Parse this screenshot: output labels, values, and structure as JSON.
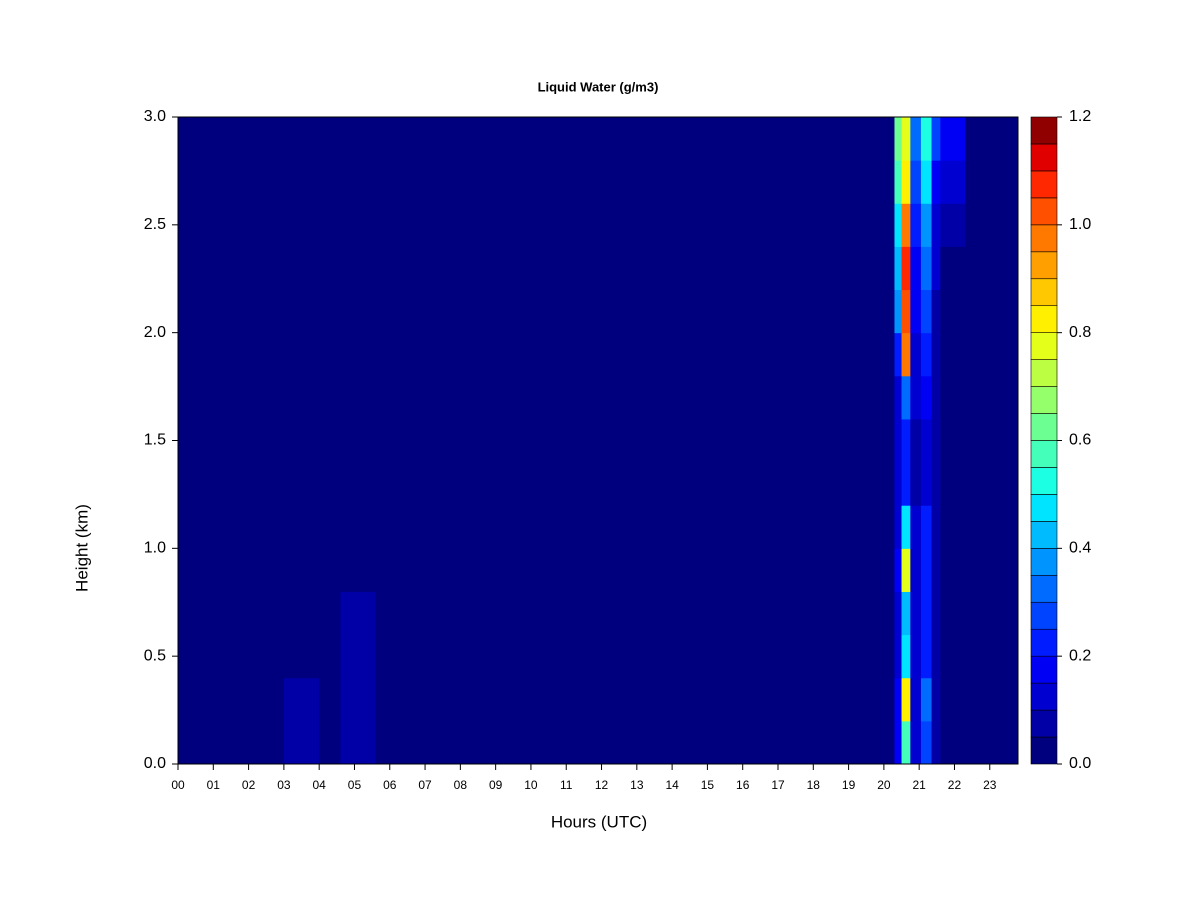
{
  "chart_data": {
    "type": "heatmap",
    "title": "Liquid Water (g/m3)",
    "x_label": "Hours (UTC)",
    "y_label": "Height (km)",
    "xlim": [
      0,
      23.8
    ],
    "ylim": [
      0,
      3
    ],
    "xticks": [
      {
        "value": 0,
        "label": "00"
      },
      {
        "value": 1,
        "label": "01"
      },
      {
        "value": 2,
        "label": "02"
      },
      {
        "value": 3,
        "label": "03"
      },
      {
        "value": 4,
        "label": "04"
      },
      {
        "value": 5,
        "label": "05"
      },
      {
        "value": 6,
        "label": "06"
      },
      {
        "value": 7,
        "label": "07"
      },
      {
        "value": 8,
        "label": "08"
      },
      {
        "value": 9,
        "label": "09"
      },
      {
        "value": 10,
        "label": "10"
      },
      {
        "value": 11,
        "label": "11"
      },
      {
        "value": 12,
        "label": "12"
      },
      {
        "value": 13,
        "label": "13"
      },
      {
        "value": 14,
        "label": "14"
      },
      {
        "value": 15,
        "label": "15"
      },
      {
        "value": 16,
        "label": "16"
      },
      {
        "value": 17,
        "label": "17"
      },
      {
        "value": 18,
        "label": "18"
      },
      {
        "value": 19,
        "label": "19"
      },
      {
        "value": 20,
        "label": "20"
      },
      {
        "value": 21,
        "label": "21"
      },
      {
        "value": 22,
        "label": "22"
      },
      {
        "value": 23,
        "label": "23"
      }
    ],
    "yticks": [
      {
        "value": 0,
        "label": "0.0"
      },
      0.5,
      {
        "value": 1,
        "label": "1.0"
      },
      1.5,
      {
        "value": 2,
        "label": "2.0"
      },
      2.5,
      {
        "value": 3,
        "label": "3.0"
      }
    ],
    "x_edges": [
      0,
      3,
      4,
      4.6,
      5.6,
      20.3,
      20.5,
      20.75,
      21.05,
      21.35,
      21.6,
      22.3,
      23.8
    ],
    "y_edges": [
      0,
      0.2,
      0.4,
      0.6,
      0.8,
      1.0,
      1.2,
      1.4,
      1.6,
      1.8,
      2.0,
      2.2,
      2.4,
      2.6,
      2.8,
      3.0
    ],
    "values": [
      [
        0.01,
        0.05,
        0.02,
        0.07,
        0.01,
        0.15,
        0.55,
        0.12,
        0.25,
        0.08,
        0.02,
        0.01
      ],
      [
        0.01,
        0.06,
        0.02,
        0.08,
        0.01,
        0.15,
        0.8,
        0.12,
        0.3,
        0.08,
        0.02,
        0.01
      ],
      [
        0.01,
        0.03,
        0.02,
        0.06,
        0.01,
        0.12,
        0.45,
        0.1,
        0.2,
        0.07,
        0.02,
        0.01
      ],
      [
        0.01,
        0.01,
        0.02,
        0.05,
        0.01,
        0.12,
        0.4,
        0.1,
        0.2,
        0.07,
        0.02,
        0.01
      ],
      [
        0.01,
        0.01,
        0.02,
        0.04,
        0.01,
        0.15,
        0.75,
        0.1,
        0.22,
        0.07,
        0.02,
        0.01
      ],
      [
        0.01,
        0.01,
        0.01,
        0.02,
        0.01,
        0.12,
        0.45,
        0.1,
        0.2,
        0.06,
        0.02,
        0.01
      ],
      [
        0.01,
        0.01,
        0.01,
        0.01,
        0.01,
        0.1,
        0.2,
        0.08,
        0.12,
        0.05,
        0.02,
        0.01
      ],
      [
        0.01,
        0.01,
        0.01,
        0.01,
        0.01,
        0.1,
        0.22,
        0.08,
        0.12,
        0.05,
        0.02,
        0.01
      ],
      [
        0.01,
        0.01,
        0.01,
        0.01,
        0.01,
        0.12,
        0.3,
        0.1,
        0.15,
        0.05,
        0.02,
        0.01
      ],
      [
        0.01,
        0.01,
        0.01,
        0.01,
        0.01,
        0.2,
        0.95,
        0.12,
        0.2,
        0.06,
        0.02,
        0.01
      ],
      [
        0.01,
        0.01,
        0.01,
        0.01,
        0.01,
        0.35,
        1.0,
        0.15,
        0.25,
        0.08,
        0.03,
        0.01
      ],
      [
        0.01,
        0.01,
        0.01,
        0.01,
        0.01,
        0.4,
        1.05,
        0.18,
        0.3,
        0.1,
        0.04,
        0.01
      ],
      [
        0.01,
        0.01,
        0.01,
        0.01,
        0.01,
        0.45,
        0.95,
        0.2,
        0.35,
        0.12,
        0.06,
        0.01
      ],
      [
        0.01,
        0.01,
        0.01,
        0.01,
        0.01,
        0.55,
        0.8,
        0.25,
        0.45,
        0.15,
        0.1,
        0.01
      ],
      [
        0.01,
        0.01,
        0.01,
        0.01,
        0.01,
        0.6,
        0.75,
        0.3,
        0.5,
        0.25,
        0.15,
        0.01
      ]
    ],
    "levels": [
      0,
      0.05,
      0.1,
      0.15,
      0.2,
      0.25,
      0.3,
      0.35,
      0.4,
      0.45,
      0.5,
      0.55,
      0.6,
      0.65,
      0.7,
      0.75,
      0.8,
      0.85,
      0.9,
      0.95,
      1.0,
      1.05,
      1.1,
      1.15,
      1.2
    ],
    "colors": [
      "#00007F",
      "#0000A6",
      "#0000D0",
      "#0000F5",
      "#001CFF",
      "#0044FF",
      "#006CFF",
      "#0094FF",
      "#00BCFF",
      "#00E4FF",
      "#1CFFE2",
      "#44FFBA",
      "#6CFF92",
      "#94FF6A",
      "#BCFF42",
      "#E4FF1A",
      "#FFF000",
      "#FFC800",
      "#FFA000",
      "#FF7800",
      "#FF5000",
      "#FF2800",
      "#E00000",
      "#900000"
    ],
    "colorbar_ticks": [
      {
        "value": 0,
        "label": "0.0"
      },
      0.2,
      0.4,
      0.6,
      0.8,
      {
        "value": 1,
        "label": "1.0"
      },
      {
        "value": 1.2,
        "label": "1.2"
      }
    ]
  }
}
